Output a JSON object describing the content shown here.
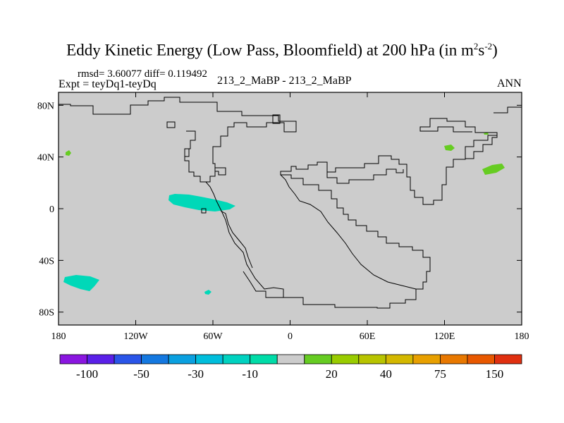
{
  "title": {
    "prefix": "Eddy Kinetic Energy (Low Pass, Bloomfield) at 200 hPa (in m",
    "sup1": "2",
    "mid": "s",
    "sup2": "-2",
    "suffix": ")"
  },
  "stats": "rmsd= 3.60077 diff= 0.119492",
  "expt": "Expt = teyDq1-teyDq",
  "center_label": "213_2_MaBP - 213_2_MaBP",
  "season": "ANN",
  "map": {
    "lon_range": [
      -180,
      180
    ],
    "lat_range": [
      -90,
      90
    ],
    "background_color": "#cccccc",
    "x_ticks": [
      {
        "value": -180,
        "label": "180"
      },
      {
        "value": -120,
        "label": "120W"
      },
      {
        "value": -60,
        "label": "60W"
      },
      {
        "value": 0,
        "label": "0"
      },
      {
        "value": 60,
        "label": "60E"
      },
      {
        "value": 120,
        "label": "120E"
      },
      {
        "value": 180,
        "label": "180"
      }
    ],
    "y_ticks": [
      {
        "value": 80,
        "label": "80N"
      },
      {
        "value": 40,
        "label": "40N"
      },
      {
        "value": 0,
        "label": "0"
      },
      {
        "value": -40,
        "label": "40S"
      },
      {
        "value": -80,
        "label": "80S"
      }
    ]
  },
  "colorbar": {
    "colors": [
      "#8a16e0",
      "#5a20e8",
      "#2a55e8",
      "#1478e0",
      "#0aa0e0",
      "#00bedc",
      "#00d2c0",
      "#00dca8",
      "#cccccc",
      "#66cc22",
      "#99cc00",
      "#b8c400",
      "#d4b800",
      "#e8a000",
      "#e87800",
      "#e85800",
      "#e03010"
    ],
    "labels": [
      "-100",
      "-50",
      "-30",
      "-10",
      "20",
      "40",
      "75",
      "150"
    ]
  }
}
